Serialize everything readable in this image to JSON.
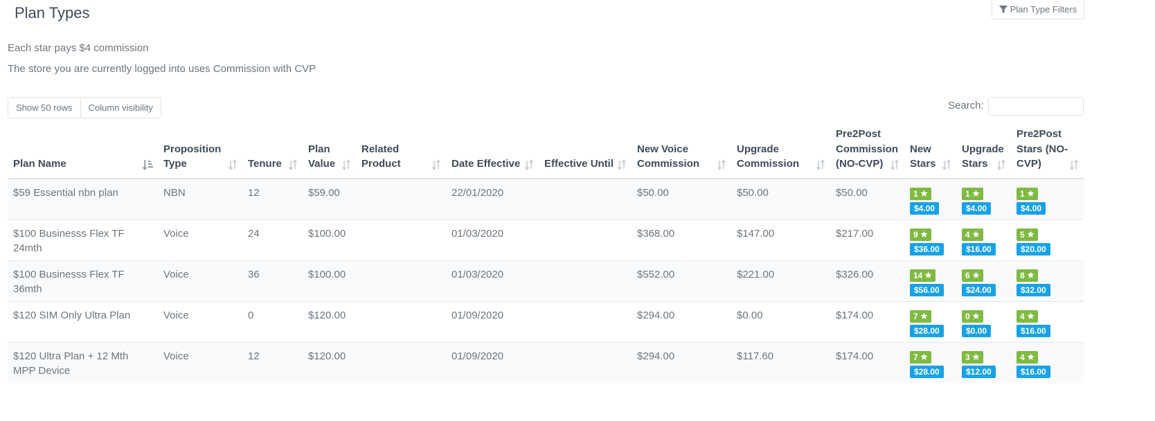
{
  "page": {
    "title": "Plan Types",
    "filters_button": "Plan Type Filters",
    "info_line1": "Each star pays $4 commission",
    "info_line2": "The store you are currently logged into uses Commission with CVP"
  },
  "toolbar": {
    "show_rows": "Show 50 rows",
    "column_visibility": "Column visibility",
    "search_label": "Search:",
    "search_value": ""
  },
  "colors": {
    "star_badge": "#7fba42",
    "value_badge": "#17a2e8",
    "heading": "#3f4b5b",
    "text": "#6c757d"
  },
  "table": {
    "columns": [
      {
        "label": "Plan Name",
        "sort": "sort-asc-icon"
      },
      {
        "label": "Proposition Type",
        "sort": "sort-both-icon"
      },
      {
        "label": "Tenure",
        "sort": "sort-both-icon"
      },
      {
        "label": "Plan Value",
        "sort": "sort-both-icon"
      },
      {
        "label": "Related Product",
        "sort": "sort-both-icon"
      },
      {
        "label": "Date Effective",
        "sort": "sort-both-icon"
      },
      {
        "label": "Effective Until",
        "sort": "sort-both-icon"
      },
      {
        "label": "New Voice Commission",
        "sort": "sort-both-icon"
      },
      {
        "label": "Upgrade Commission",
        "sort": "sort-both-icon"
      },
      {
        "label": "Pre2Post Commission (NO-CVP)",
        "sort": "sort-both-icon"
      },
      {
        "label": "New Stars",
        "sort": "sort-both-icon"
      },
      {
        "label": "Upgrade Stars",
        "sort": "sort-both-icon"
      },
      {
        "label": "Pre2Post Stars (NO-CVP)",
        "sort": "sort-both-icon"
      }
    ],
    "rows": [
      {
        "plan_name": "$59 Essential nbn plan",
        "proposition_type": "NBN",
        "tenure": "12",
        "plan_value": "$59.00",
        "related_product": "",
        "date_effective": "22/01/2020",
        "effective_until": "",
        "new_voice_commission": "$50.00",
        "upgrade_commission": "$50.00",
        "pre2post_commission": "$50.00",
        "new_stars": {
          "stars": "1",
          "value": "$4.00"
        },
        "upgrade_stars": {
          "stars": "1",
          "value": "$4.00"
        },
        "pre2post_stars": {
          "stars": "1",
          "value": "$4.00"
        }
      },
      {
        "plan_name": "$100 Businesss Flex TF 24mth",
        "proposition_type": "Voice",
        "tenure": "24",
        "plan_value": "$100.00",
        "related_product": "",
        "date_effective": "01/03/2020",
        "effective_until": "",
        "new_voice_commission": "$368.00",
        "upgrade_commission": "$147.00",
        "pre2post_commission": "$217.00",
        "new_stars": {
          "stars": "9",
          "value": "$36.00"
        },
        "upgrade_stars": {
          "stars": "4",
          "value": "$16.00"
        },
        "pre2post_stars": {
          "stars": "5",
          "value": "$20.00"
        }
      },
      {
        "plan_name": "$100 Businesss Flex TF 36mth",
        "proposition_type": "Voice",
        "tenure": "36",
        "plan_value": "$100.00",
        "related_product": "",
        "date_effective": "01/03/2020",
        "effective_until": "",
        "new_voice_commission": "$552.00",
        "upgrade_commission": "$221.00",
        "pre2post_commission": "$326.00",
        "new_stars": {
          "stars": "14",
          "value": "$56.00"
        },
        "upgrade_stars": {
          "stars": "6",
          "value": "$24.00"
        },
        "pre2post_stars": {
          "stars": "8",
          "value": "$32.00"
        }
      },
      {
        "plan_name": "$120 SIM Only Ultra Plan",
        "proposition_type": "Voice",
        "tenure": "0",
        "plan_value": "$120.00",
        "related_product": "",
        "date_effective": "01/09/2020",
        "effective_until": "",
        "new_voice_commission": "$294.00",
        "upgrade_commission": "$0.00",
        "pre2post_commission": "$174.00",
        "new_stars": {
          "stars": "7",
          "value": "$28.00"
        },
        "upgrade_stars": {
          "stars": "0",
          "value": "$0.00"
        },
        "pre2post_stars": {
          "stars": "4",
          "value": "$16.00"
        }
      },
      {
        "plan_name": "$120 Ultra Plan + 12 Mth MPP Device",
        "proposition_type": "Voice",
        "tenure": "12",
        "plan_value": "$120.00",
        "related_product": "",
        "date_effective": "01/09/2020",
        "effective_until": "",
        "new_voice_commission": "$294.00",
        "upgrade_commission": "$117.60",
        "pre2post_commission": "$174.00",
        "new_stars": {
          "stars": "7",
          "value": "$28.00"
        },
        "upgrade_stars": {
          "stars": "3",
          "value": "$12.00"
        },
        "pre2post_stars": {
          "stars": "4",
          "value": "$16.00"
        }
      }
    ]
  }
}
